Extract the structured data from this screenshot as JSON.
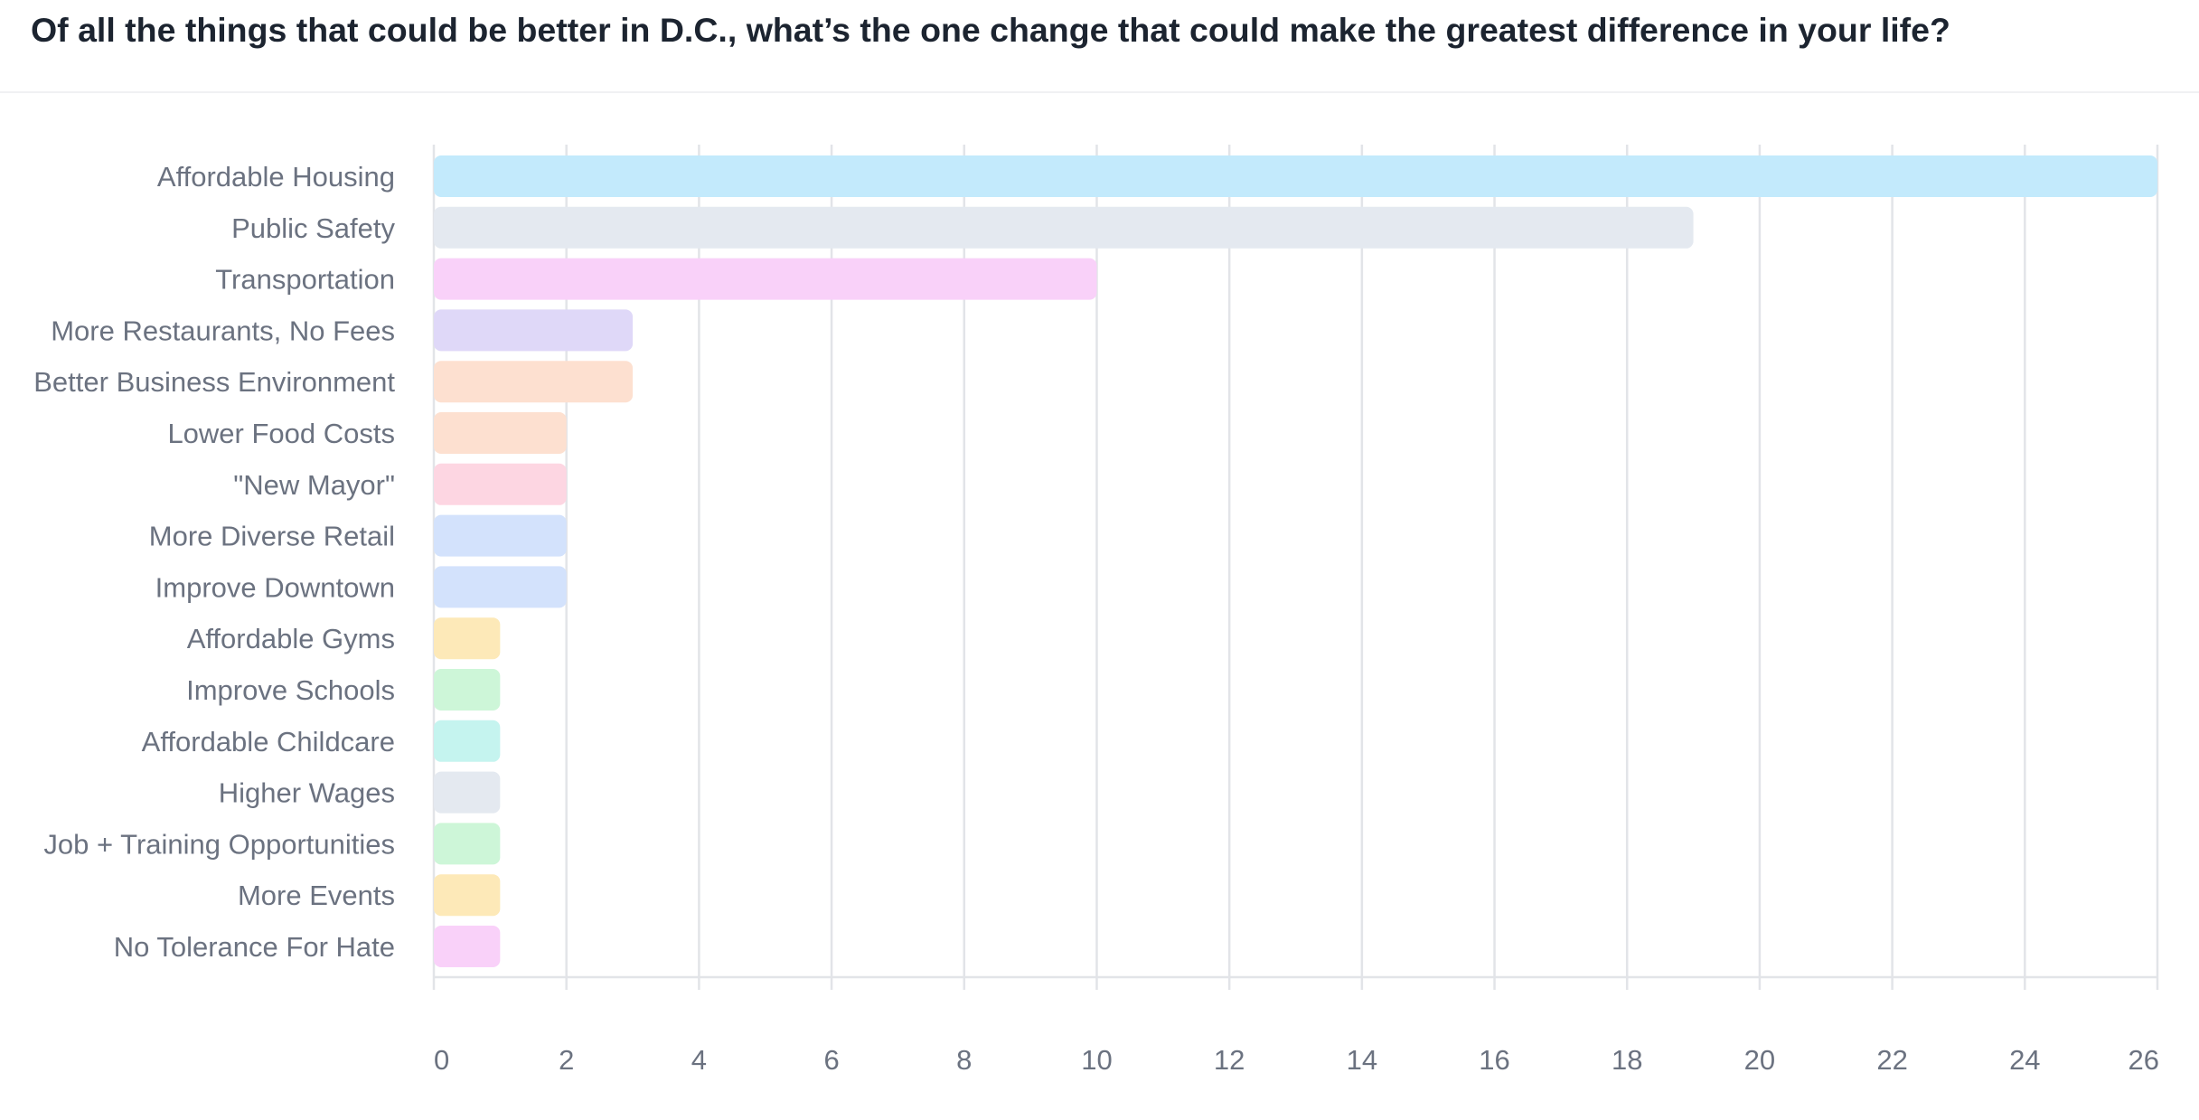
{
  "title": "Of all the things that could be better in D.C., what’s the one change that could make the greatest difference in your life?",
  "chart_data": {
    "type": "bar",
    "orientation": "horizontal",
    "categories": [
      "Affordable Housing",
      "Public Safety",
      "Transportation",
      "More Restaurants, No Fees",
      "Better Business Environment",
      "Lower Food Costs",
      "\"New Mayor\"",
      "More Diverse Retail",
      "Improve Downtown",
      "Affordable Gyms",
      "Improve Schools",
      "Affordable Childcare",
      "Higher Wages",
      "Job + Training Opportunities",
      "More Events",
      "No Tolerance For Hate"
    ],
    "values": [
      26,
      19,
      10,
      3,
      3,
      2,
      2,
      2,
      2,
      1,
      1,
      1,
      1,
      1,
      1,
      1
    ],
    "colors": [
      "#c3eafc",
      "#e4e9f0",
      "#f9d1f9",
      "#dfd8f8",
      "#fde0d0",
      "#fde0d0",
      "#fdd6e2",
      "#d3e2fc",
      "#d3e2fc",
      "#fde9b8",
      "#cdf6d8",
      "#c5f4ef",
      "#e4e9f0",
      "#cdf6d8",
      "#fde9b8",
      "#f9d1f9"
    ],
    "xlim": [
      0,
      26
    ],
    "xticks": [
      0,
      2,
      4,
      6,
      8,
      10,
      12,
      14,
      16,
      18,
      20,
      22,
      24,
      26
    ],
    "grid": true,
    "legend": "none"
  }
}
